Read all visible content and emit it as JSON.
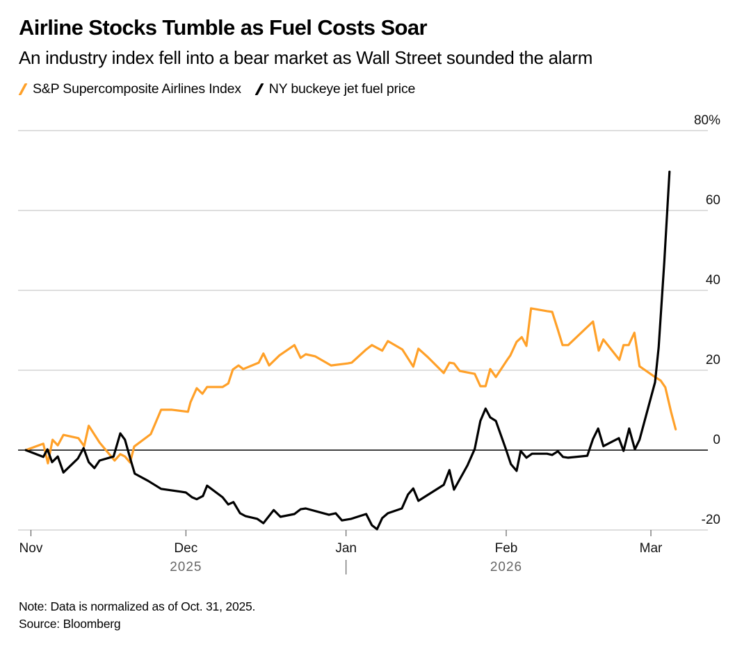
{
  "chart_data": {
    "type": "line",
    "title": "Airline Stocks Tumble as Fuel Costs Soar",
    "subtitle": "An industry index fell into a bear market as Wall Street sounded the alarm",
    "xlabel": "",
    "ylabel": "",
    "x_unit": "days since Oct. 31, 2025",
    "xlim": [
      -1,
      132
    ],
    "ylim": [
      -20,
      80
    ],
    "y_ticks": [
      {
        "value": 80,
        "label": "80%"
      },
      {
        "value": 60,
        "label": "60"
      },
      {
        "value": 40,
        "label": "40"
      },
      {
        "value": 20,
        "label": "20"
      },
      {
        "value": 0,
        "label": "0"
      },
      {
        "value": -20,
        "label": "-20"
      }
    ],
    "x_ticks": [
      {
        "value": 1,
        "label": "Nov"
      },
      {
        "value": 31,
        "label": "Dec"
      },
      {
        "value": 62,
        "label": "Jan"
      },
      {
        "value": 93,
        "label": "Feb"
      },
      {
        "value": 121,
        "label": "Mar"
      }
    ],
    "x_years": [
      {
        "value": 31,
        "label": "2025"
      },
      {
        "value": 93,
        "label": "2026"
      }
    ],
    "year_divider": 62,
    "grid": true,
    "legend_position": "top-left",
    "series": [
      {
        "name": "S&P Supercomposite Airlines Index",
        "color": "#FFA028",
        "points": [
          [
            0,
            0
          ],
          [
            3.4,
            1.6
          ],
          [
            4.3,
            -3.3
          ],
          [
            5.2,
            2.6
          ],
          [
            6.2,
            1.2
          ],
          [
            7.3,
            3.8
          ],
          [
            10.2,
            3.0
          ],
          [
            11.3,
            1.0
          ],
          [
            12.2,
            6.1
          ],
          [
            14.3,
            1.9
          ],
          [
            17.2,
            -2.6
          ],
          [
            18.3,
            -1.0
          ],
          [
            19.2,
            -1.6
          ],
          [
            20.2,
            -3.1
          ],
          [
            21.0,
            0.9
          ],
          [
            24.2,
            4.0
          ],
          [
            26.2,
            10.1
          ],
          [
            28.3,
            10.1
          ],
          [
            31.4,
            9.6
          ],
          [
            31.9,
            12.0
          ],
          [
            33.1,
            15.5
          ],
          [
            34.2,
            14.1
          ],
          [
            35.1,
            15.8
          ],
          [
            38.1,
            15.8
          ],
          [
            39.2,
            16.7
          ],
          [
            40.1,
            20.2
          ],
          [
            41.2,
            21.2
          ],
          [
            42.1,
            20.3
          ],
          [
            45.1,
            21.9
          ],
          [
            46.0,
            24.2
          ],
          [
            47.1,
            21.2
          ],
          [
            49.1,
            23.7
          ],
          [
            52.0,
            26.3
          ],
          [
            53.2,
            23.1
          ],
          [
            54.2,
            24.0
          ],
          [
            56.0,
            23.5
          ],
          [
            59.1,
            21.2
          ],
          [
            62.3,
            21.7
          ],
          [
            63.1,
            21.9
          ],
          [
            65.9,
            25.2
          ],
          [
            67.0,
            26.3
          ],
          [
            69.0,
            24.9
          ],
          [
            70.1,
            27.3
          ],
          [
            72.9,
            25.2
          ],
          [
            75.0,
            20.9
          ],
          [
            76.0,
            25.4
          ],
          [
            77.8,
            23.3
          ],
          [
            80.9,
            19.3
          ],
          [
            82.0,
            21.9
          ],
          [
            82.9,
            21.7
          ],
          [
            84.0,
            19.8
          ],
          [
            86.9,
            19.1
          ],
          [
            88.0,
            16.0
          ],
          [
            89.0,
            16.0
          ],
          [
            89.9,
            20.3
          ],
          [
            91.0,
            18.3
          ],
          [
            93.3,
            22.8
          ],
          [
            93.8,
            23.7
          ],
          [
            95.0,
            27.1
          ],
          [
            96.0,
            28.3
          ],
          [
            96.9,
            26.1
          ],
          [
            97.8,
            35.5
          ],
          [
            100.9,
            34.8
          ],
          [
            101.9,
            34.6
          ],
          [
            103.0,
            30.1
          ],
          [
            103.9,
            26.3
          ],
          [
            105.0,
            26.3
          ],
          [
            109.8,
            32.2
          ],
          [
            110.9,
            24.9
          ],
          [
            111.8,
            27.7
          ],
          [
            114.9,
            22.6
          ],
          [
            115.7,
            26.3
          ],
          [
            116.7,
            26.3
          ],
          [
            117.8,
            29.4
          ],
          [
            118.8,
            21.0
          ],
          [
            121.8,
            18.3
          ],
          [
            122.9,
            17.4
          ],
          [
            123.8,
            15.7
          ],
          [
            124.9,
            9.6
          ],
          [
            125.8,
            5.2
          ]
        ]
      },
      {
        "name": "NY buckeye jet fuel price",
        "color": "#000000",
        "points": [
          [
            0,
            0
          ],
          [
            3.4,
            -1.7
          ],
          [
            4.2,
            0.2
          ],
          [
            5.1,
            -3.0
          ],
          [
            6.2,
            -1.6
          ],
          [
            7.3,
            -5.6
          ],
          [
            10.1,
            -2.1
          ],
          [
            11.2,
            0.5
          ],
          [
            12.2,
            -3.0
          ],
          [
            13.3,
            -4.5
          ],
          [
            14.3,
            -2.6
          ],
          [
            17.0,
            -1.6
          ],
          [
            18.3,
            4.2
          ],
          [
            19.2,
            2.6
          ],
          [
            20.3,
            -2.4
          ],
          [
            21.1,
            -5.9
          ],
          [
            23.7,
            -7.7
          ],
          [
            26.2,
            -9.7
          ],
          [
            30.0,
            -10.4
          ],
          [
            31.0,
            -10.6
          ],
          [
            32.2,
            -11.8
          ],
          [
            33.1,
            -12.3
          ],
          [
            34.3,
            -11.5
          ],
          [
            35.1,
            -8.9
          ],
          [
            38.1,
            -11.8
          ],
          [
            39.2,
            -13.6
          ],
          [
            40.2,
            -13.0
          ],
          [
            41.5,
            -15.8
          ],
          [
            42.5,
            -16.5
          ],
          [
            44.8,
            -17.2
          ],
          [
            46.0,
            -18.3
          ],
          [
            48.0,
            -15.0
          ],
          [
            49.3,
            -16.7
          ],
          [
            52.0,
            -16.0
          ],
          [
            53.2,
            -14.8
          ],
          [
            54.2,
            -14.6
          ],
          [
            58.7,
            -16.2
          ],
          [
            60.0,
            -15.8
          ],
          [
            61.2,
            -17.6
          ],
          [
            63.0,
            -17.2
          ],
          [
            65.9,
            -16.0
          ],
          [
            67.0,
            -18.8
          ],
          [
            68.0,
            -19.8
          ],
          [
            69.0,
            -17.0
          ],
          [
            70.1,
            -15.8
          ],
          [
            72.8,
            -14.6
          ],
          [
            74.0,
            -11.1
          ],
          [
            75.0,
            -9.6
          ],
          [
            76.0,
            -12.7
          ],
          [
            80.9,
            -8.7
          ],
          [
            82.0,
            -5.0
          ],
          [
            82.9,
            -9.9
          ],
          [
            85.5,
            -3.8
          ],
          [
            86.9,
            0.3
          ],
          [
            88.0,
            7.3
          ],
          [
            89.0,
            10.4
          ],
          [
            89.9,
            8.2
          ],
          [
            91.0,
            7.3
          ],
          [
            93.0,
            0
          ],
          [
            93.9,
            -3.5
          ],
          [
            95.0,
            -5.2
          ],
          [
            95.8,
            -0.2
          ],
          [
            96.9,
            -1.9
          ],
          [
            98.0,
            -0.9
          ],
          [
            100.9,
            -0.9
          ],
          [
            101.9,
            -1.2
          ],
          [
            103.0,
            -0.3
          ],
          [
            104.0,
            -1.7
          ],
          [
            105.0,
            -1.9
          ],
          [
            108.7,
            -1.4
          ],
          [
            109.8,
            2.8
          ],
          [
            110.8,
            5.4
          ],
          [
            111.8,
            1.0
          ],
          [
            114.8,
            3.0
          ],
          [
            115.7,
            -0.2
          ],
          [
            116.8,
            5.4
          ],
          [
            117.9,
            0.2
          ],
          [
            118.8,
            2.6
          ],
          [
            121.8,
            17.0
          ],
          [
            122.5,
            25.7
          ],
          [
            123.6,
            47.1
          ],
          [
            124.6,
            69.7
          ]
        ]
      }
    ]
  },
  "header": {
    "title": "Airline Stocks Tumble as Fuel Costs Soar",
    "subtitle": "An industry index fell into a bear market as Wall Street sounded the alarm"
  },
  "legend": [
    {
      "label": "S&P Supercomposite Airlines Index",
      "color": "#FFA028"
    },
    {
      "label": "NY buckeye jet fuel price",
      "color": "#000000"
    }
  ],
  "footer": {
    "note": "Note: Data is normalized as of Oct. 31, 2025.",
    "source": "Source: Bloomberg"
  }
}
